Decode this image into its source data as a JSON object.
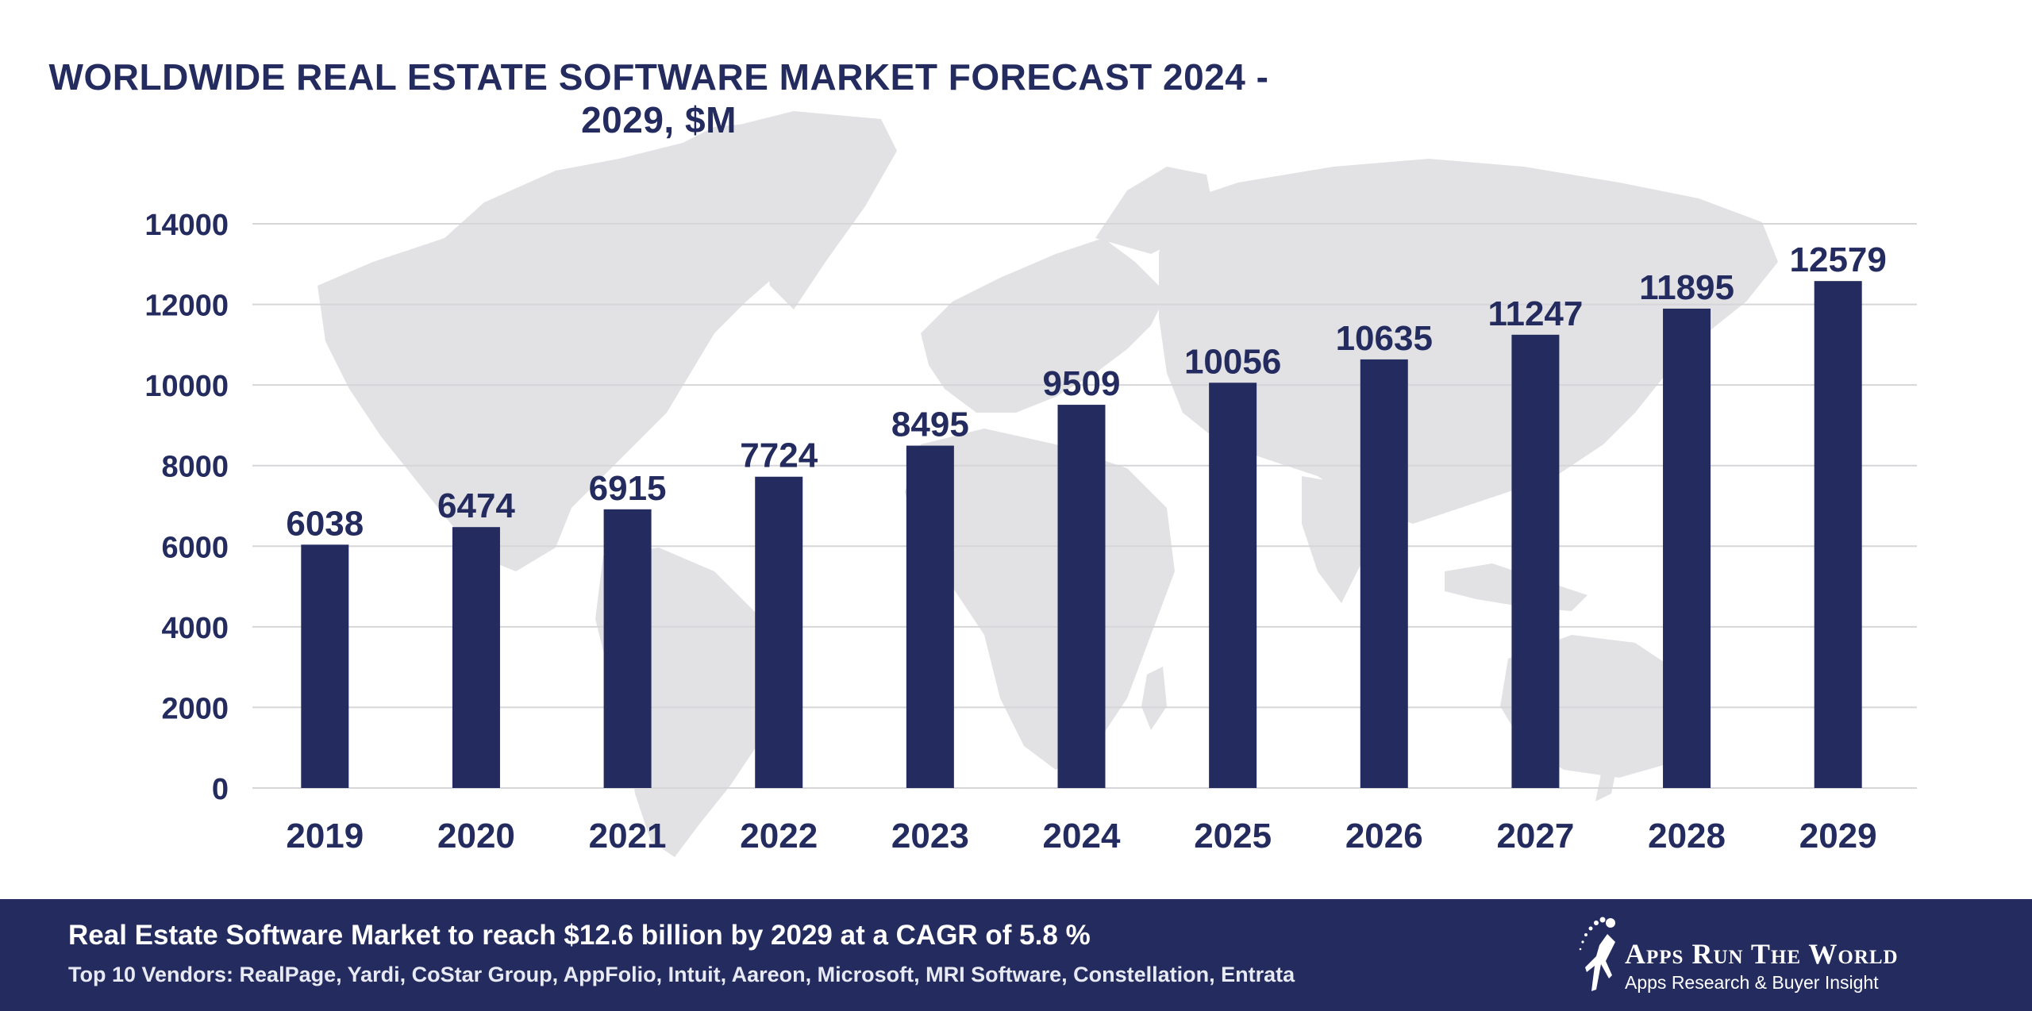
{
  "chart_data": {
    "type": "bar",
    "title": "WORLDWIDE REAL ESTATE SOFTWARE MARKET FORECAST 2024 - 2029, $M",
    "categories": [
      "2019",
      "2020",
      "2021",
      "2022",
      "2023",
      "2024",
      "2025",
      "2026",
      "2027",
      "2028",
      "2029"
    ],
    "values": [
      6038,
      6474,
      6915,
      7724,
      8495,
      9509,
      10056,
      10635,
      11247,
      11895,
      12579
    ],
    "yticks": [
      0,
      2000,
      4000,
      6000,
      8000,
      10000,
      12000,
      14000
    ],
    "ylim": [
      0,
      14000
    ],
    "grid": true,
    "data_labels": true,
    "bar_color": "#232b5f",
    "background_image": "world-map"
  },
  "footer": {
    "headline": "Real Estate Software Market to reach $12.6 billion by 2029 at a CAGR of 5.8 %",
    "vendors": "Top 10 Vendors: RealPage, Yardi, CoStar Group, AppFolio, Intuit, Aareon, Microsoft, MRI Software, Constellation, Entrata",
    "brand_name": "Apps Run The World",
    "brand_tagline": "Apps Research & Buyer Insight",
    "background_color": "#232b5f"
  }
}
